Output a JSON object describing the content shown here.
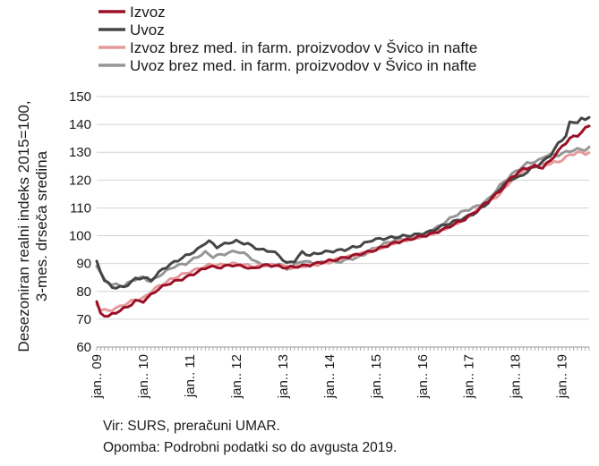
{
  "chart_data": {
    "type": "line",
    "ylabel": [
      "Desezoniran realni indeks 2015=100,",
      "3-mes. drseča sredina"
    ],
    "ylim": [
      60,
      150
    ],
    "yticks": [
      60,
      70,
      80,
      90,
      100,
      110,
      120,
      130,
      140,
      150
    ],
    "x_start": "2009-01",
    "x_end": "2019-08",
    "x_tick_labels": [
      "jan.. 09",
      "jan.. 10",
      "jan.. 11",
      "jan.. 12",
      "jan.. 13",
      "jan.. 14",
      "jan.. 15",
      "jan.. 16",
      "jan.. 17",
      "jan.. 18",
      "jan.. 19"
    ],
    "grid": "horizontal",
    "legend_position": "top",
    "series": [
      {
        "name": "Izvoz",
        "color": "#9b1027",
        "width": 3,
        "anchors": [
          [
            "2009-01",
            76
          ],
          [
            "2009-02",
            72
          ],
          [
            "2009-03",
            71.5
          ],
          [
            "2009-04",
            71
          ],
          [
            "2009-06",
            72.5
          ],
          [
            "2009-09",
            74.5
          ],
          [
            "2009-11",
            76.5
          ],
          [
            "2010-01",
            76.5
          ],
          [
            "2010-02",
            77.5
          ],
          [
            "2010-04",
            80
          ],
          [
            "2010-07",
            82.5
          ],
          [
            "2010-10",
            84
          ],
          [
            "2010-12",
            85
          ],
          [
            "2011-03",
            87
          ],
          [
            "2011-06",
            89
          ],
          [
            "2011-08",
            88.5
          ],
          [
            "2011-10",
            89
          ],
          [
            "2011-12",
            89.5
          ],
          [
            "2012-03",
            89
          ],
          [
            "2012-05",
            88
          ],
          [
            "2012-07",
            89
          ],
          [
            "2012-09",
            89.5
          ],
          [
            "2012-12",
            89
          ],
          [
            "2013-02",
            88.5
          ],
          [
            "2013-05",
            89
          ],
          [
            "2013-08",
            89.5
          ],
          [
            "2013-11",
            90.5
          ],
          [
            "2014-01",
            91
          ],
          [
            "2014-03",
            91.5
          ],
          [
            "2014-06",
            92.5
          ],
          [
            "2014-09",
            93.5
          ],
          [
            "2014-12",
            94.5
          ],
          [
            "2015-03",
            96
          ],
          [
            "2015-06",
            97.5
          ],
          [
            "2015-09",
            98.5
          ],
          [
            "2015-12",
            99.5
          ],
          [
            "2016-03",
            100.5
          ],
          [
            "2016-06",
            102
          ],
          [
            "2016-09",
            104
          ],
          [
            "2016-12",
            106
          ],
          [
            "2017-03",
            109
          ],
          [
            "2017-06",
            112.5
          ],
          [
            "2017-09",
            116
          ],
          [
            "2017-12",
            121
          ],
          [
            "2018-03",
            124
          ],
          [
            "2018-06",
            125
          ],
          [
            "2018-08",
            124.5
          ],
          [
            "2018-10",
            127
          ],
          [
            "2019-01",
            132
          ],
          [
            "2019-03",
            135
          ],
          [
            "2019-05",
            136
          ],
          [
            "2019-07",
            138.5
          ],
          [
            "2019-08",
            139.5
          ]
        ]
      },
      {
        "name": "Uvoz",
        "color": "#454545",
        "width": 3,
        "anchors": [
          [
            "2009-01",
            90.5
          ],
          [
            "2009-03",
            84
          ],
          [
            "2009-05",
            81.5
          ],
          [
            "2009-08",
            81.5
          ],
          [
            "2009-11",
            84.5
          ],
          [
            "2010-01",
            85
          ],
          [
            "2010-03",
            84
          ],
          [
            "2010-06",
            88
          ],
          [
            "2010-09",
            90.5
          ],
          [
            "2010-11",
            92
          ],
          [
            "2011-01",
            93.5
          ],
          [
            "2011-03",
            95
          ],
          [
            "2011-05",
            97.5
          ],
          [
            "2011-06",
            98
          ],
          [
            "2011-08",
            96
          ],
          [
            "2011-11",
            97.5
          ],
          [
            "2012-01",
            98
          ],
          [
            "2012-04",
            97
          ],
          [
            "2012-07",
            95
          ],
          [
            "2012-10",
            94.5
          ],
          [
            "2012-12",
            93
          ],
          [
            "2013-02",
            90
          ],
          [
            "2013-04",
            91
          ],
          [
            "2013-06",
            94
          ],
          [
            "2013-08",
            93
          ],
          [
            "2013-11",
            94
          ],
          [
            "2014-02",
            94.5
          ],
          [
            "2014-05",
            95
          ],
          [
            "2014-09",
            96.5
          ],
          [
            "2014-12",
            98.5
          ],
          [
            "2015-03",
            99
          ],
          [
            "2015-06",
            99.5
          ],
          [
            "2015-09",
            100
          ],
          [
            "2015-12",
            100.5
          ],
          [
            "2016-03",
            101.5
          ],
          [
            "2016-06",
            103.5
          ],
          [
            "2016-09",
            105
          ],
          [
            "2016-12",
            106.5
          ],
          [
            "2017-03",
            108.5
          ],
          [
            "2017-06",
            112
          ],
          [
            "2017-09",
            117
          ],
          [
            "2017-12",
            120.5
          ],
          [
            "2018-02",
            121
          ],
          [
            "2018-05",
            124
          ],
          [
            "2018-08",
            126.5
          ],
          [
            "2018-10",
            129
          ],
          [
            "2018-12",
            133
          ],
          [
            "2019-02",
            136
          ],
          [
            "2019-03",
            140.5
          ],
          [
            "2019-05",
            141
          ],
          [
            "2019-06",
            142
          ],
          [
            "2019-07",
            141.5
          ],
          [
            "2019-08",
            143
          ]
        ]
      },
      {
        "name": "Izvoz brez med. in farm. proizvodov v Švico in nafte",
        "color": "#e49a9b",
        "width": 3,
        "anchors": [
          [
            "2009-01",
            75.5
          ],
          [
            "2009-02",
            73.5
          ],
          [
            "2009-04",
            73
          ],
          [
            "2009-07",
            74.5
          ],
          [
            "2009-10",
            76.5
          ],
          [
            "2010-01",
            77.5
          ],
          [
            "2010-04",
            81
          ],
          [
            "2010-07",
            83.5
          ],
          [
            "2010-10",
            85.5
          ],
          [
            "2010-12",
            86.5
          ],
          [
            "2011-03",
            88
          ],
          [
            "2011-06",
            89.5
          ],
          [
            "2011-09",
            89.5
          ],
          [
            "2011-12",
            90
          ],
          [
            "2012-03",
            89.5
          ],
          [
            "2012-06",
            89
          ],
          [
            "2012-09",
            89.5
          ],
          [
            "2012-12",
            89.5
          ],
          [
            "2013-03",
            88.5
          ],
          [
            "2013-06",
            89
          ],
          [
            "2013-09",
            89.5
          ],
          [
            "2013-12",
            90
          ],
          [
            "2014-03",
            91.5
          ],
          [
            "2014-06",
            92.5
          ],
          [
            "2014-09",
            93.5
          ],
          [
            "2014-12",
            94.5
          ],
          [
            "2015-03",
            96
          ],
          [
            "2015-06",
            97.5
          ],
          [
            "2015-09",
            98.5
          ],
          [
            "2015-12",
            99.5
          ],
          [
            "2016-03",
            100.5
          ],
          [
            "2016-06",
            102
          ],
          [
            "2016-09",
            104
          ],
          [
            "2016-12",
            106
          ],
          [
            "2017-03",
            109
          ],
          [
            "2017-06",
            112
          ],
          [
            "2017-09",
            115
          ],
          [
            "2017-12",
            120
          ],
          [
            "2018-03",
            123.5
          ],
          [
            "2018-06",
            125
          ],
          [
            "2018-08",
            125.5
          ],
          [
            "2018-10",
            126
          ],
          [
            "2018-12",
            126.5
          ],
          [
            "2019-03",
            129
          ],
          [
            "2019-05",
            130
          ],
          [
            "2019-07",
            129.5
          ],
          [
            "2019-08",
            130
          ]
        ]
      },
      {
        "name": "Uvoz brez med. in farm. proizvodov v Švico in nafte",
        "color": "#969696",
        "width": 3,
        "anchors": [
          [
            "2009-01",
            89.5
          ],
          [
            "2009-03",
            84
          ],
          [
            "2009-05",
            82.5
          ],
          [
            "2009-08",
            82
          ],
          [
            "2009-11",
            84.5
          ],
          [
            "2010-01",
            85
          ],
          [
            "2010-03",
            83.5
          ],
          [
            "2010-06",
            86.5
          ],
          [
            "2010-09",
            89
          ],
          [
            "2010-12",
            90
          ],
          [
            "2011-03",
            92.5
          ],
          [
            "2011-05",
            94
          ],
          [
            "2011-07",
            92.5
          ],
          [
            "2011-10",
            93.5
          ],
          [
            "2012-01",
            94.5
          ],
          [
            "2012-04",
            93
          ],
          [
            "2012-06",
            90.5
          ],
          [
            "2012-09",
            89
          ],
          [
            "2012-12",
            90
          ],
          [
            "2013-02",
            88
          ],
          [
            "2013-04",
            89.5
          ],
          [
            "2013-06",
            91
          ],
          [
            "2013-09",
            90
          ],
          [
            "2013-12",
            90.5
          ],
          [
            "2014-03",
            90.5
          ],
          [
            "2014-06",
            91.5
          ],
          [
            "2014-09",
            92.5
          ],
          [
            "2014-12",
            95
          ],
          [
            "2015-03",
            97
          ],
          [
            "2015-06",
            98.5
          ],
          [
            "2015-09",
            99
          ],
          [
            "2015-12",
            99.5
          ],
          [
            "2016-03",
            101.5
          ],
          [
            "2016-06",
            104
          ],
          [
            "2016-09",
            107
          ],
          [
            "2016-12",
            109
          ],
          [
            "2017-03",
            110.5
          ],
          [
            "2017-06",
            113
          ],
          [
            "2017-09",
            118
          ],
          [
            "2017-12",
            122
          ],
          [
            "2018-02",
            124
          ],
          [
            "2018-04",
            126
          ],
          [
            "2018-07",
            127
          ],
          [
            "2018-09",
            129
          ],
          [
            "2018-12",
            129
          ],
          [
            "2019-03",
            130.5
          ],
          [
            "2019-05",
            131
          ],
          [
            "2019-07",
            131
          ],
          [
            "2019-08",
            131.5
          ]
        ]
      }
    ]
  },
  "notes": {
    "source": "Vir: SURS, preračuni UMAR.",
    "remark": "Opomba: Podrobni podatki so do avgusta 2019."
  }
}
